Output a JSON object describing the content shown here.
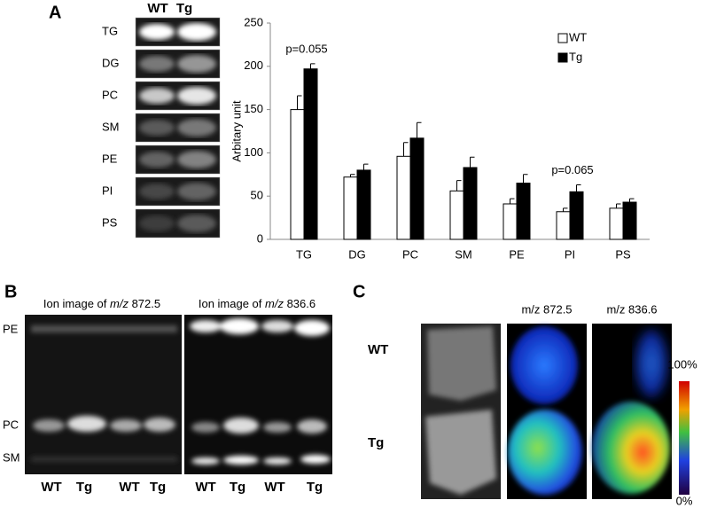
{
  "panel_labels": [
    "A",
    "B",
    "C"
  ],
  "blot": {
    "columns": [
      "WT",
      "Tg"
    ],
    "rows": [
      "TG",
      "DG",
      "PC",
      "SM",
      "PE",
      "PI",
      "PS"
    ]
  },
  "chart_data": {
    "type": "bar",
    "ylabel": "Arbitary unit",
    "categories": [
      "TG",
      "DG",
      "PC",
      "SM",
      "PE",
      "PI",
      "PS"
    ],
    "series": [
      {
        "name": "WT",
        "color": "#ffffff",
        "values": [
          150,
          72,
          96,
          56,
          41,
          32,
          36
        ],
        "errors": [
          16,
          3,
          16,
          12,
          6,
          4,
          5
        ]
      },
      {
        "name": "Tg",
        "color": "#000000",
        "values": [
          197,
          80,
          117,
          83,
          65,
          55,
          43
        ],
        "errors": [
          6,
          7,
          18,
          12,
          10,
          8,
          4
        ]
      }
    ],
    "ylim": [
      0,
      250
    ],
    "yticks": [
      0,
      50,
      100,
      150,
      200,
      250
    ],
    "legend": "upper right",
    "annotations": [
      {
        "text": "p=0.055",
        "category": "TG"
      },
      {
        "text": "p=0.065",
        "category": "PI"
      }
    ]
  },
  "panel_b": {
    "titles": [
      {
        "prefix": "Ion image of ",
        "italic": "m/z",
        "suffix": " 872.5"
      },
      {
        "prefix": "Ion image of ",
        "italic": "m/z",
        "suffix": " 836.6"
      }
    ],
    "row_labels": [
      "PE",
      "PC",
      "SM"
    ],
    "column_labels": [
      "WT",
      "Tg",
      "WT",
      "Tg",
      "WT",
      "Tg",
      "WT",
      "Tg"
    ]
  },
  "panel_c": {
    "headers": [
      "m/z 872.5",
      "m/z 836.6"
    ],
    "row_labels": [
      "WT",
      "Tg"
    ],
    "scale_labels": [
      "100%",
      "0%"
    ]
  }
}
